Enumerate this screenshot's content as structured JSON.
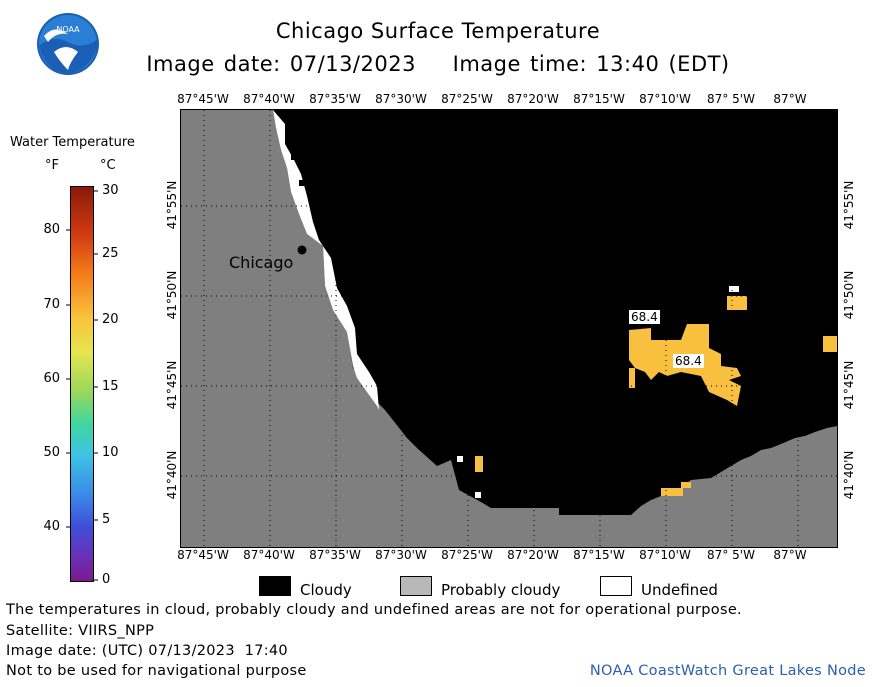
{
  "header": {
    "title": "Chicago Surface Temperature",
    "image_date_line": "Image date: 07/13/2023    Image time: 13:40 (EDT)"
  },
  "logo": {
    "text": "NOAA",
    "icon": "noaa-logo-icon"
  },
  "colorbar": {
    "title": "Water Temperature",
    "unit_f": "°F",
    "unit_c": "°C",
    "f_ticks": [
      "80",
      "70",
      "60",
      "50",
      "40"
    ],
    "c_ticks": [
      "30",
      "25",
      "20",
      "15",
      "10",
      "5",
      "0"
    ]
  },
  "axes": {
    "lon_ticks": [
      "87°45'W",
      "87°40'W",
      "87°35'W",
      "87°30'W",
      "87°25'W",
      "87°20'W",
      "87°15'W",
      "87°10'W",
      "87° 5'W",
      "87°W"
    ],
    "lat_ticks": [
      "41°55'N",
      "41°50'N",
      "41°45'N",
      "41°40'N"
    ]
  },
  "map": {
    "city_label": "Chicago",
    "temp_labels": [
      "68.4",
      "68.4"
    ],
    "colors": {
      "land": "#7f7f7f",
      "cloud": "#000000",
      "warm": "#f9c040",
      "undefined": "#ffffff"
    }
  },
  "legend": {
    "cloudy": "Cloudy",
    "probably_cloudy": "Probably cloudy",
    "undefined": "Undefined"
  },
  "footer": {
    "note": "The temperatures in cloud, probably cloudy and undefined areas are not for operational purpose.",
    "satellite": "Satellite: VIIRS_NPP",
    "utc_date": "Image date: (UTC) 07/13/2023  17:40",
    "nav_warning": "Not to be used for navigational purpose",
    "credit": "NOAA CoastWatch Great Lakes Node"
  }
}
